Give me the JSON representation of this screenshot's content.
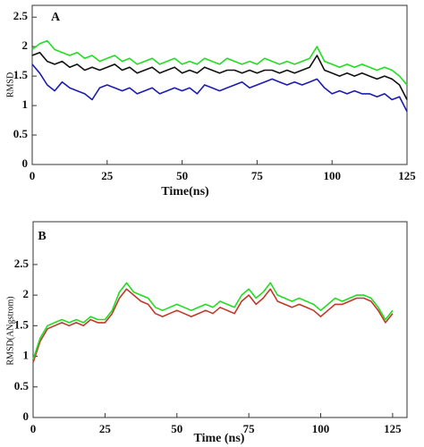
{
  "chart_data": [
    {
      "type": "line",
      "title": "A",
      "xlabel": "Time(ns)",
      "ylabel": "RMSD",
      "x": [
        0,
        2.5,
        5,
        7.5,
        10,
        12.5,
        15,
        17.5,
        20,
        22.5,
        25,
        27.5,
        30,
        32.5,
        35,
        37.5,
        40,
        42.5,
        45,
        47.5,
        50,
        52.5,
        55,
        57.5,
        60,
        62.5,
        65,
        67.5,
        70,
        72.5,
        75,
        77.5,
        80,
        82.5,
        85,
        87.5,
        90,
        92.5,
        95,
        97.5,
        100,
        102.5,
        105,
        107.5,
        110,
        112.5,
        115,
        117.5,
        120,
        122.5,
        125
      ],
      "series": [
        {
          "color": "#22dd22",
          "values": [
            1.95,
            2.05,
            2.1,
            1.95,
            1.9,
            1.85,
            1.9,
            1.8,
            1.85,
            1.75,
            1.8,
            1.85,
            1.75,
            1.8,
            1.7,
            1.75,
            1.8,
            1.7,
            1.75,
            1.8,
            1.7,
            1.75,
            1.7,
            1.8,
            1.75,
            1.7,
            1.8,
            1.75,
            1.7,
            1.75,
            1.7,
            1.8,
            1.75,
            1.7,
            1.75,
            1.7,
            1.75,
            1.8,
            2.0,
            1.75,
            1.7,
            1.65,
            1.7,
            1.65,
            1.7,
            1.65,
            1.6,
            1.65,
            1.6,
            1.5,
            1.35
          ]
        },
        {
          "color": "#111111",
          "values": [
            1.85,
            1.9,
            1.75,
            1.7,
            1.75,
            1.65,
            1.7,
            1.6,
            1.65,
            1.6,
            1.65,
            1.7,
            1.6,
            1.65,
            1.55,
            1.6,
            1.65,
            1.55,
            1.6,
            1.65,
            1.55,
            1.6,
            1.55,
            1.65,
            1.6,
            1.55,
            1.6,
            1.6,
            1.55,
            1.6,
            1.55,
            1.6,
            1.6,
            1.55,
            1.6,
            1.55,
            1.6,
            1.65,
            1.85,
            1.6,
            1.55,
            1.5,
            1.55,
            1.5,
            1.55,
            1.5,
            1.45,
            1.5,
            1.45,
            1.35,
            1.1
          ]
        },
        {
          "color": "#1c1cb0",
          "values": [
            1.7,
            1.55,
            1.35,
            1.25,
            1.4,
            1.3,
            1.25,
            1.2,
            1.1,
            1.3,
            1.35,
            1.3,
            1.25,
            1.3,
            1.2,
            1.25,
            1.3,
            1.2,
            1.25,
            1.3,
            1.25,
            1.3,
            1.2,
            1.35,
            1.3,
            1.25,
            1.3,
            1.35,
            1.4,
            1.3,
            1.35,
            1.4,
            1.45,
            1.4,
            1.35,
            1.4,
            1.35,
            1.4,
            1.45,
            1.3,
            1.2,
            1.25,
            1.2,
            1.25,
            1.2,
            1.2,
            1.15,
            1.2,
            1.1,
            1.15,
            0.9
          ]
        }
      ],
      "xlim": [
        0,
        125
      ],
      "ylim": [
        0,
        2.7
      ],
      "xticks": [
        0,
        25,
        50,
        75,
        100,
        125
      ],
      "yticks": [
        0,
        0.5,
        1,
        1.5,
        2,
        2.5
      ]
    },
    {
      "type": "line",
      "title": "B",
      "xlabel": "Time (ns)",
      "ylabel": "RMSD(ANgstrom)",
      "x": [
        0,
        2.5,
        5,
        7.5,
        10,
        12.5,
        15,
        17.5,
        20,
        22.5,
        25,
        27.5,
        30,
        32.5,
        35,
        37.5,
        40,
        42.5,
        45,
        47.5,
        50,
        52.5,
        55,
        57.5,
        60,
        62.5,
        65,
        67.5,
        70,
        72.5,
        75,
        77.5,
        80,
        82.5,
        85,
        87.5,
        90,
        92.5,
        95,
        97.5,
        100,
        102.5,
        105,
        107.5,
        110,
        112.5,
        115,
        117.5,
        120,
        122.5,
        125
      ],
      "series": [
        {
          "color": "#c0392b",
          "values": [
            0.9,
            1.25,
            1.45,
            1.5,
            1.55,
            1.5,
            1.55,
            1.5,
            1.6,
            1.55,
            1.55,
            1.7,
            1.95,
            2.1,
            2.0,
            1.9,
            1.85,
            1.7,
            1.65,
            1.7,
            1.75,
            1.7,
            1.65,
            1.7,
            1.75,
            1.7,
            1.8,
            1.75,
            1.7,
            1.9,
            2.0,
            1.85,
            1.95,
            2.1,
            1.9,
            1.85,
            1.8,
            1.85,
            1.8,
            1.75,
            1.65,
            1.75,
            1.85,
            1.85,
            1.9,
            1.95,
            1.95,
            1.9,
            1.75,
            1.55,
            1.7
          ]
        },
        {
          "color": "#22dd22",
          "values": [
            0.95,
            1.3,
            1.5,
            1.55,
            1.6,
            1.55,
            1.6,
            1.55,
            1.65,
            1.6,
            1.6,
            1.75,
            2.05,
            2.2,
            2.05,
            2.0,
            1.95,
            1.8,
            1.75,
            1.8,
            1.85,
            1.8,
            1.75,
            1.8,
            1.85,
            1.8,
            1.9,
            1.85,
            1.8,
            2.0,
            2.1,
            1.95,
            2.05,
            2.2,
            2.0,
            1.95,
            1.9,
            1.95,
            1.9,
            1.85,
            1.75,
            1.85,
            1.95,
            1.9,
            1.95,
            2.0,
            2.0,
            1.95,
            1.8,
            1.6,
            1.75
          ]
        }
      ],
      "xlim": [
        0,
        130
      ],
      "ylim": [
        0,
        3.2
      ],
      "xticks": [
        0,
        25,
        50,
        75,
        100,
        125
      ],
      "yticks": [
        0,
        0.5,
        1,
        1.5,
        2,
        2.5
      ]
    }
  ]
}
